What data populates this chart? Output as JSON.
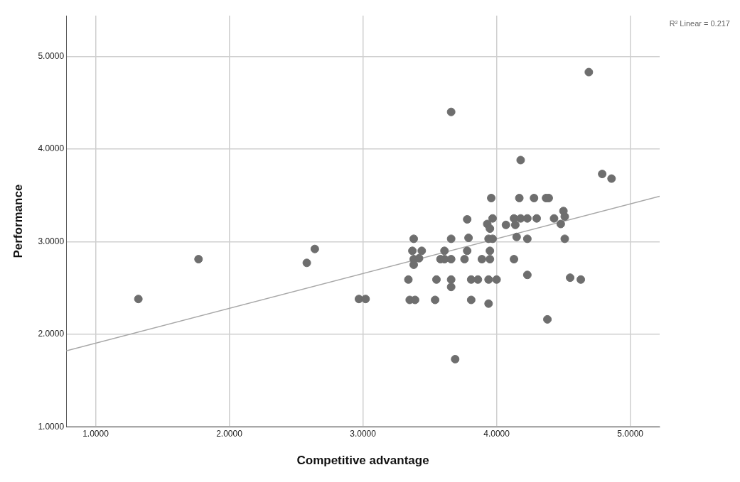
{
  "chart_data": {
    "type": "scatter",
    "xlabel": "Competitive advantage",
    "ylabel": "Performance",
    "annotations": [
      "R² Linear = 0.217"
    ],
    "xlim": [
      0.78,
      5.22
    ],
    "ylim": [
      1.0,
      5.44
    ],
    "xticks": [
      {
        "value": 1,
        "label": "1.0000"
      },
      {
        "value": 2,
        "label": "2.0000"
      },
      {
        "value": 3,
        "label": "3.0000"
      },
      {
        "value": 4,
        "label": "4.0000"
      },
      {
        "value": 5,
        "label": "5.0000"
      }
    ],
    "yticks": [
      {
        "value": 1,
        "label": "1.0000"
      },
      {
        "value": 2,
        "label": "2.0000"
      },
      {
        "value": 3,
        "label": "3.0000"
      },
      {
        "value": 4,
        "label": "4.0000"
      },
      {
        "value": 5,
        "label": "5.0000"
      }
    ],
    "grid": true,
    "legend": false,
    "marker": "circle",
    "series": [
      {
        "color": "#6e6e6e",
        "x": [
          1.32,
          1.77,
          2.58,
          2.64,
          2.97,
          3.02,
          3.66,
          4.69,
          4.18,
          4.79,
          4.86,
          3.96,
          4.17,
          4.28,
          4.37,
          4.39,
          3.78,
          3.97,
          3.93,
          3.95,
          4.07,
          4.13,
          4.18,
          4.23,
          4.3,
          4.14,
          4.43,
          4.48,
          4.5,
          4.51,
          3.38,
          3.66,
          3.79,
          3.94,
          3.97,
          4.15,
          4.23,
          4.51,
          3.37,
          3.44,
          3.61,
          3.78,
          3.95,
          3.38,
          3.42,
          3.58,
          3.61,
          3.66,
          3.76,
          3.89,
          3.95,
          4.13,
          3.38,
          3.34,
          3.55,
          3.66,
          3.81,
          3.86,
          3.94,
          4.0,
          4.23,
          4.55,
          4.63,
          3.66,
          3.35,
          3.39,
          3.54,
          3.81,
          3.94,
          4.38,
          3.69
        ],
        "values": [
          2.38,
          2.81,
          2.77,
          2.92,
          2.38,
          2.38,
          4.4,
          4.83,
          3.88,
          3.73,
          3.68,
          3.47,
          3.47,
          3.47,
          3.47,
          3.47,
          3.24,
          3.25,
          3.19,
          3.14,
          3.18,
          3.25,
          3.25,
          3.25,
          3.25,
          3.18,
          3.25,
          3.19,
          3.33,
          3.27,
          3.03,
          3.03,
          3.04,
          3.03,
          3.03,
          3.05,
          3.03,
          3.03,
          2.9,
          2.9,
          2.9,
          2.9,
          2.9,
          2.81,
          2.82,
          2.81,
          2.81,
          2.81,
          2.81,
          2.81,
          2.81,
          2.81,
          2.75,
          2.59,
          2.59,
          2.59,
          2.59,
          2.59,
          2.59,
          2.59,
          2.64,
          2.61,
          2.59,
          2.51,
          2.37,
          2.37,
          2.37,
          2.37,
          2.33,
          2.16,
          1.73
        ]
      },
      {
        "type": "line",
        "color": "#a8a8a8",
        "x": [
          0.78,
          5.22
        ],
        "values": [
          1.82,
          3.49
        ],
        "marker": "none"
      }
    ]
  }
}
